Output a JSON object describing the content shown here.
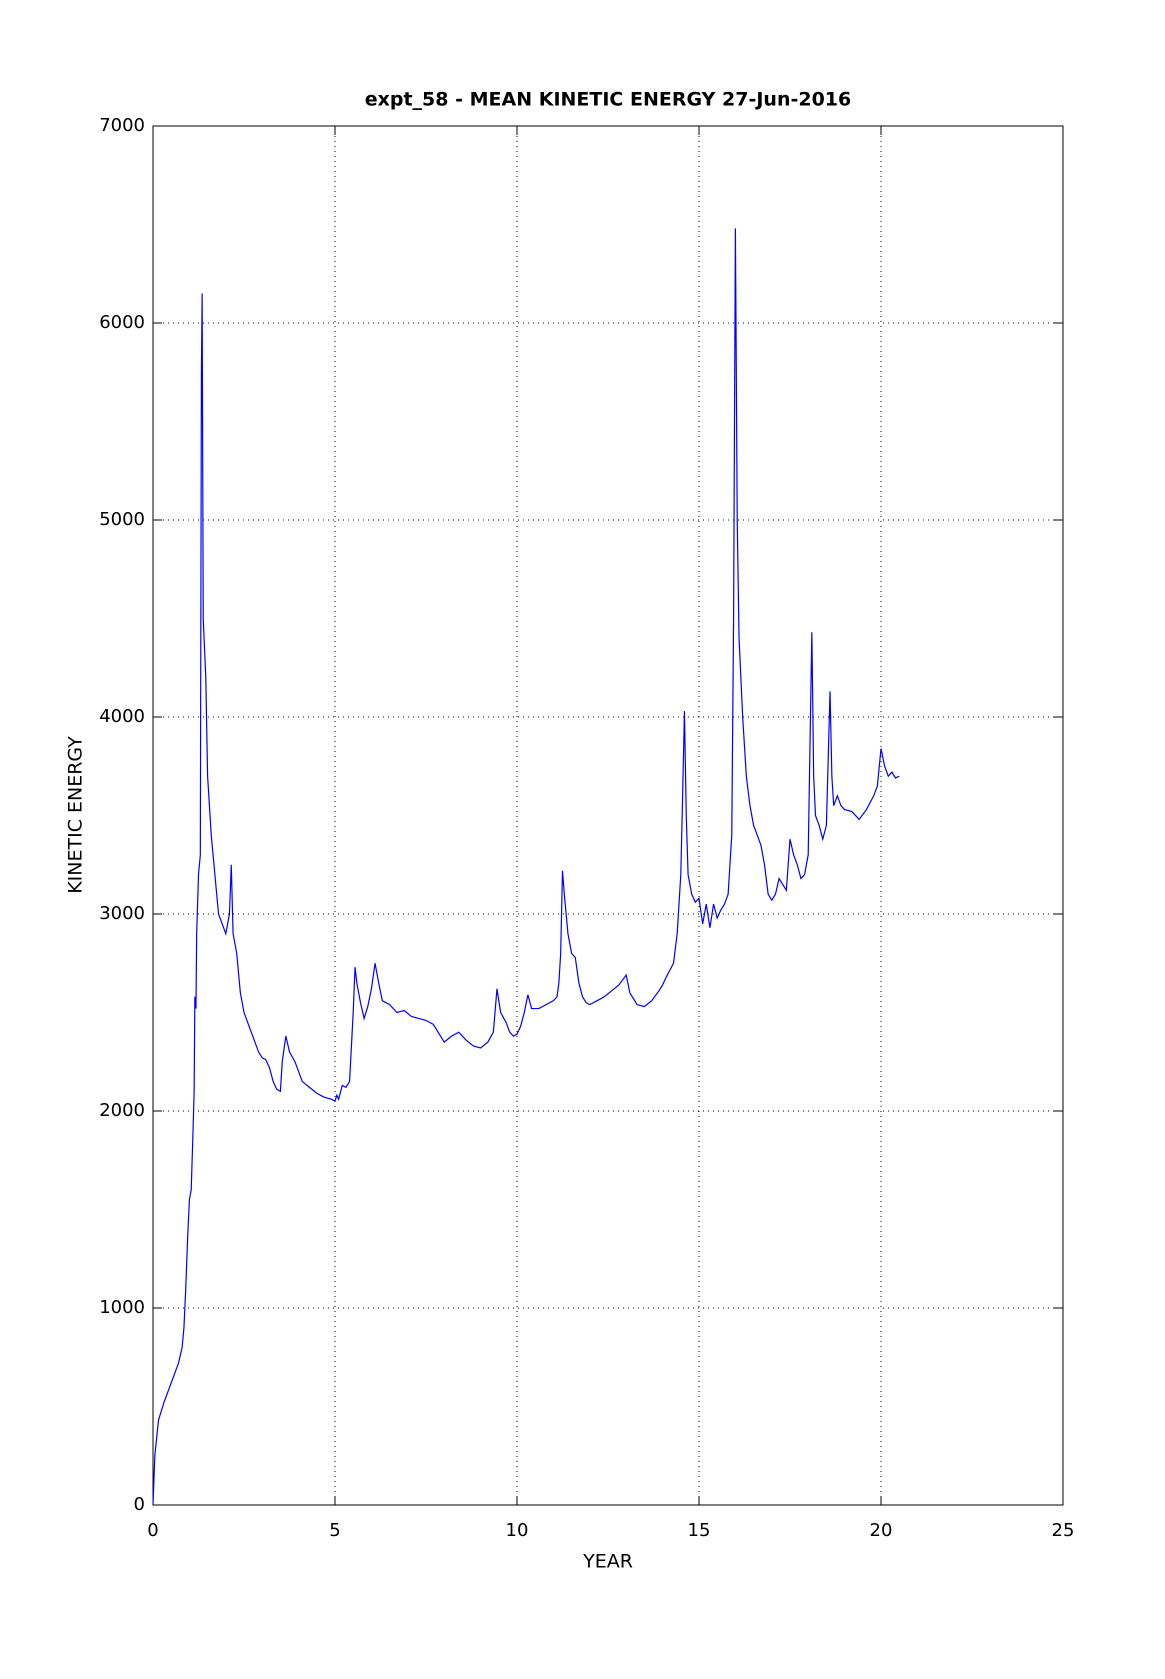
{
  "chart_data": {
    "type": "line",
    "title": "expt_58 - MEAN KINETIC ENERGY 27-Jun-2016",
    "x_label": "YEAR",
    "y_label": "KINETIC ENERGY",
    "xlim": [
      0,
      25
    ],
    "xticks": [
      0,
      5,
      10,
      15,
      20,
      25
    ],
    "ylim": [
      0,
      7000
    ],
    "yticks": [
      0,
      1000,
      2000,
      3000,
      4000,
      5000,
      6000,
      7000
    ],
    "grid": true,
    "x": [
      0,
      0.05,
      0.15,
      0.3,
      0.5,
      0.7,
      0.8,
      0.85,
      0.9,
      0.95,
      1.0,
      1.05,
      1.1,
      1.13,
      1.15,
      1.18,
      1.2,
      1.25,
      1.3,
      1.33,
      1.35,
      1.38,
      1.45,
      1.5,
      1.6,
      1.7,
      1.8,
      1.9,
      2.0,
      2.05,
      2.1,
      2.15,
      2.2,
      2.3,
      2.4,
      2.5,
      2.7,
      2.9,
      3.0,
      3.1,
      3.2,
      3.3,
      3.4,
      3.5,
      3.55,
      3.65,
      3.75,
      3.9,
      4.0,
      4.1,
      4.3,
      4.5,
      4.7,
      4.9,
      5.0,
      5.05,
      5.1,
      5.2,
      5.3,
      5.4,
      5.5,
      5.55,
      5.6,
      5.7,
      5.8,
      5.9,
      6.0,
      6.1,
      6.2,
      6.3,
      6.5,
      6.7,
      6.9,
      7.1,
      7.3,
      7.5,
      7.7,
      7.9,
      8.0,
      8.2,
      8.4,
      8.6,
      8.8,
      9.0,
      9.2,
      9.35,
      9.45,
      9.55,
      9.7,
      9.8,
      9.9,
      10.0,
      10.1,
      10.2,
      10.3,
      10.4,
      10.6,
      10.8,
      11.0,
      11.1,
      11.15,
      11.2,
      11.25,
      11.3,
      11.4,
      11.5,
      11.6,
      11.7,
      11.8,
      11.9,
      12.0,
      12.2,
      12.4,
      12.6,
      12.8,
      13.0,
      13.1,
      13.3,
      13.5,
      13.7,
      13.9,
      14.0,
      14.1,
      14.3,
      14.4,
      14.5,
      14.55,
      14.6,
      14.65,
      14.7,
      14.8,
      14.9,
      15.0,
      15.1,
      15.2,
      15.3,
      15.4,
      15.5,
      15.6,
      15.7,
      15.8,
      15.9,
      15.95,
      16.0,
      16.05,
      16.1,
      16.2,
      16.3,
      16.4,
      16.5,
      16.6,
      16.7,
      16.8,
      16.9,
      17.0,
      17.1,
      17.2,
      17.3,
      17.4,
      17.5,
      17.6,
      17.7,
      17.8,
      17.9,
      18.0,
      18.1,
      18.15,
      18.2,
      18.3,
      18.4,
      18.5,
      18.6,
      18.65,
      18.7,
      18.8,
      18.9,
      19.0,
      19.2,
      19.4,
      19.6,
      19.8,
      19.9,
      20.0,
      20.1,
      20.2,
      20.3,
      20.4,
      20.5
    ],
    "series": [
      {
        "color": "#0000ff",
        "values": [
          0,
          250,
          430,
          520,
          620,
          720,
          800,
          900,
          1100,
          1350,
          1550,
          1600,
          1900,
          2100,
          2580,
          2520,
          2900,
          3200,
          3300,
          5750,
          6150,
          4500,
          4200,
          3700,
          3400,
          3200,
          3000,
          2950,
          2900,
          2950,
          3000,
          3250,
          2900,
          2800,
          2600,
          2500,
          2400,
          2300,
          2270,
          2260,
          2220,
          2150,
          2110,
          2100,
          2250,
          2380,
          2300,
          2250,
          2200,
          2150,
          2120,
          2090,
          2070,
          2060,
          2050,
          2080,
          2060,
          2130,
          2120,
          2150,
          2500,
          2730,
          2650,
          2550,
          2470,
          2530,
          2620,
          2750,
          2650,
          2560,
          2540,
          2500,
          2510,
          2480,
          2470,
          2460,
          2440,
          2380,
          2350,
          2380,
          2400,
          2360,
          2330,
          2320,
          2350,
          2400,
          2620,
          2500,
          2450,
          2400,
          2380,
          2390,
          2430,
          2500,
          2590,
          2520,
          2520,
          2540,
          2560,
          2580,
          2650,
          2800,
          3220,
          3100,
          2900,
          2800,
          2780,
          2650,
          2580,
          2550,
          2540,
          2560,
          2580,
          2610,
          2640,
          2690,
          2600,
          2540,
          2530,
          2560,
          2610,
          2640,
          2680,
          2750,
          2900,
          3200,
          3600,
          4030,
          3500,
          3200,
          3100,
          3060,
          3080,
          2950,
          3050,
          2930,
          3050,
          2980,
          3020,
          3050,
          3100,
          3400,
          4500,
          6480,
          5000,
          4400,
          4000,
          3700,
          3550,
          3450,
          3400,
          3350,
          3250,
          3100,
          3070,
          3100,
          3180,
          3150,
          3120,
          3380,
          3300,
          3250,
          3180,
          3200,
          3300,
          4430,
          3700,
          3500,
          3450,
          3380,
          3450,
          4130,
          3700,
          3550,
          3600,
          3550,
          3530,
          3520,
          3480,
          3530,
          3600,
          3650,
          3840,
          3750,
          3700,
          3720,
          3690,
          3700
        ]
      }
    ]
  }
}
